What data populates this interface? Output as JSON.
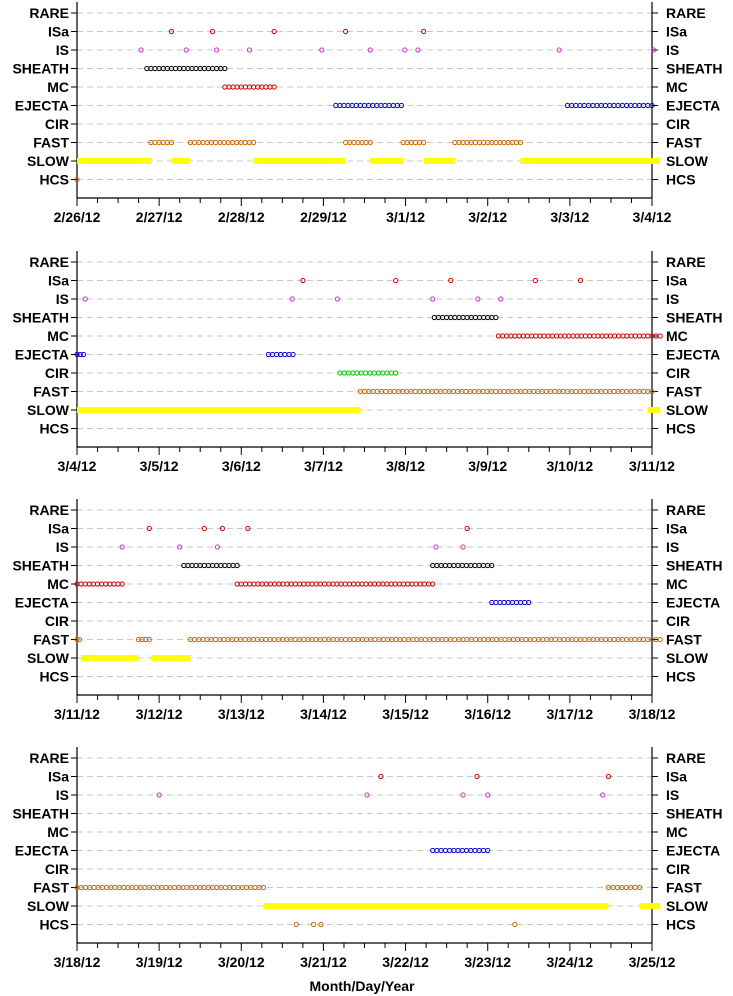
{
  "chart_data": {
    "type": "scatter",
    "xlabel": "Month/Day/Year",
    "categories": [
      "RARE",
      "ISa",
      "IS",
      "SHEATH",
      "MC",
      "EJECTA",
      "CIR",
      "FAST",
      "SLOW",
      "HCS"
    ],
    "colors": {
      "ISa": "#cc0000",
      "IS": "#cc33cc",
      "SHEATH": "#000000",
      "MC": "#cc0000",
      "EJECTA": "#0000cc",
      "CIR": "#00cc00",
      "FAST": "#cc6600",
      "SLOW": "#ffff00",
      "HCS": "#cc6600",
      "grid": "#c8c8c8"
    },
    "panels": [
      {
        "start": "2/26/12",
        "ticks": [
          "2/26/12",
          "2/27/12",
          "2/28/12",
          "2/29/12",
          "3/1/12",
          "3/2/12",
          "3/3/12",
          "3/4/12"
        ],
        "events": {
          "ISa": {
            "points": [
              1.15,
              1.65,
              2.4,
              3.27,
              4.22
            ]
          },
          "IS": {
            "points": [
              0.78,
              1.33,
              1.7,
              2.1,
              2.98,
              3.57,
              3.99,
              4.15,
              5.87,
              7.02
            ]
          },
          "SHEATH": {
            "spans": [
              [
                0.85,
                1.8
              ]
            ]
          },
          "MC": {
            "spans": [
              [
                1.8,
                2.4
              ]
            ]
          },
          "EJECTA": {
            "spans": [
              [
                3.15,
                3.95
              ],
              [
                5.97,
                7.0
              ]
            ]
          },
          "CIR": {
            "spans": []
          },
          "FAST": {
            "spans": [
              [
                0.9,
                1.15
              ],
              [
                1.38,
                2.15
              ],
              [
                3.27,
                3.57
              ],
              [
                3.97,
                4.22
              ],
              [
                4.6,
                5.4
              ]
            ]
          },
          "SLOW": {
            "spans": [
              [
                0.0,
                0.9
              ],
              [
                1.15,
                1.38
              ],
              [
                2.15,
                3.27
              ],
              [
                3.57,
                3.97
              ],
              [
                4.22,
                4.6
              ],
              [
                5.4,
                7.1
              ]
            ]
          },
          "HCS": {
            "points": [
              0.0
            ]
          }
        }
      },
      {
        "start": "3/4/12",
        "ticks": [
          "3/4/12",
          "3/5/12",
          "3/6/12",
          "3/7/12",
          "3/8/12",
          "3/9/12",
          "3/10/12",
          "3/11/12"
        ],
        "events": {
          "ISa": {
            "points": [
              2.75,
              3.88,
              4.55,
              5.58,
              6.13
            ]
          },
          "IS": {
            "points": [
              0.1,
              2.62,
              3.17,
              4.33,
              4.88,
              5.16
            ]
          },
          "SHEATH": {
            "spans": [
              [
                4.35,
                5.1
              ]
            ]
          },
          "MC": {
            "spans": [
              [
                5.13,
                7.1
              ]
            ]
          },
          "EJECTA": {
            "spans": [
              [
                0.0,
                0.08
              ],
              [
                2.33,
                2.63
              ]
            ]
          },
          "CIR": {
            "spans": [
              [
                3.2,
                3.88
              ]
            ]
          },
          "FAST": {
            "spans": [
              [
                3.45,
                7.0
              ]
            ]
          },
          "SLOW": {
            "spans": [
              [
                0.0,
                3.45
              ],
              [
                6.95,
                7.1
              ]
            ]
          },
          "HCS": {
            "points": []
          }
        }
      },
      {
        "start": "3/11/12",
        "ticks": [
          "3/11/12",
          "3/12/12",
          "3/13/12",
          "3/14/12",
          "3/15/12",
          "3/16/12",
          "3/17/12",
          "3/18/12"
        ],
        "events": {
          "ISa": {
            "points": [
              0.88,
              1.55,
              1.77,
              2.08,
              4.75
            ]
          },
          "IS": {
            "points": [
              0.55,
              1.25,
              1.71,
              4.37,
              4.7
            ]
          },
          "SHEATH": {
            "spans": [
              [
                1.3,
                1.95
              ],
              [
                4.33,
                5.05
              ]
            ]
          },
          "MC": {
            "spans": [
              [
                0.0,
                0.55
              ],
              [
                1.95,
                4.33
              ]
            ]
          },
          "EJECTA": {
            "spans": [
              [
                5.05,
                5.5
              ]
            ]
          },
          "CIR": {
            "spans": []
          },
          "FAST": {
            "spans": [
              [
                0.0,
                0.03
              ],
              [
                0.75,
                0.88
              ],
              [
                1.38,
                7.1
              ]
            ]
          },
          "SLOW": {
            "spans": [
              [
                0.05,
                0.75
              ],
              [
                0.9,
                1.38
              ]
            ]
          },
          "HCS": {
            "points": []
          }
        }
      },
      {
        "start": "3/18/12",
        "ticks": [
          "3/18/12",
          "3/19/12",
          "3/20/12",
          "3/21/12",
          "3/22/12",
          "3/23/12",
          "3/24/12",
          "3/25/12"
        ],
        "events": {
          "ISa": {
            "points": [
              3.7,
              4.87,
              6.47
            ]
          },
          "IS": {
            "points": [
              1.0,
              3.53,
              4.7,
              5.0,
              6.4
            ]
          },
          "SHEATH": {
            "spans": []
          },
          "MC": {
            "spans": []
          },
          "EJECTA": {
            "spans": [
              [
                4.33,
                5.0
              ]
            ]
          },
          "CIR": {
            "spans": []
          },
          "FAST": {
            "spans": [
              [
                0.0,
                2.27
              ],
              [
                6.47,
                6.85
              ]
            ]
          },
          "SLOW": {
            "spans": [
              [
                2.27,
                6.47
              ],
              [
                6.85,
                7.1
              ]
            ]
          },
          "HCS": {
            "points": [
              2.67,
              2.88,
              2.97,
              5.33
            ]
          }
        }
      }
    ]
  }
}
